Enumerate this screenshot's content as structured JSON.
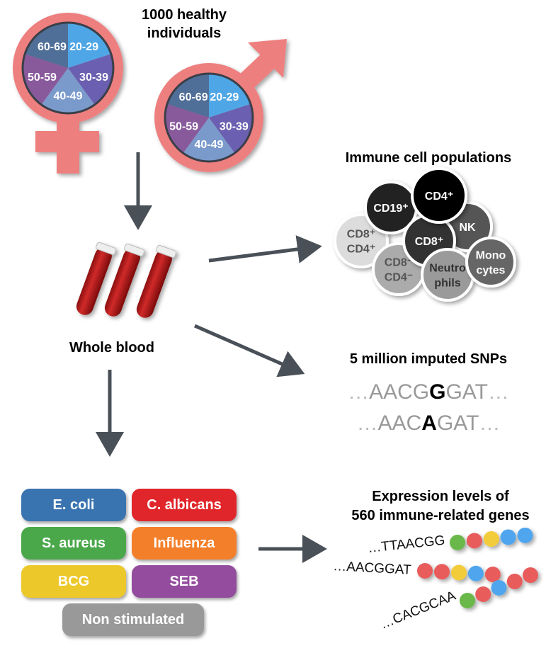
{
  "title": [
    "1000 healthy",
    "individuals"
  ],
  "age_groups": [
    "20-29",
    "30-39",
    "40-49",
    "50-59",
    "60-69"
  ],
  "age_colors": [
    "#4fa6e6",
    "#6a5fb0",
    "#7a9acc",
    "#885a9c",
    "#4f6f98"
  ],
  "symbol_color": "#ee7f7f",
  "whole_blood": "Whole blood",
  "immune": {
    "title": "Immune cell populations",
    "cells": [
      {
        "label": [
          "CD8⁺",
          "CD4⁺"
        ],
        "color": "#dcdcdc",
        "text": "#555"
      },
      {
        "label": [
          "CD8⁻",
          "CD4⁻"
        ],
        "color": "#ababab",
        "text": "#555"
      },
      {
        "label": [
          "CD19⁺"
        ],
        "color": "#222222",
        "text": "#fff"
      },
      {
        "label": [
          "NK"
        ],
        "color": "#555555",
        "text": "#fff"
      },
      {
        "label": [
          "CD8⁺"
        ],
        "color": "#333333",
        "text": "#fff"
      },
      {
        "label": [
          "CD4⁺"
        ],
        "color": "#000000",
        "text": "#fff"
      },
      {
        "label": [
          "Neutro",
          "phils"
        ],
        "color": "#9a9a9a",
        "text": "#333"
      },
      {
        "label": [
          "Mono",
          "cytes"
        ],
        "color": "#666666",
        "text": "#fff"
      }
    ]
  },
  "snps": {
    "title": "5 million imputed SNPs",
    "seq1": {
      "pre": "AACG",
      "var": "G",
      "post": "GAT"
    },
    "seq2": {
      "pre": "AAC",
      "var": "A",
      "post": "GAT"
    }
  },
  "stimuli": [
    {
      "label": "E. coli",
      "color": "#3a74b0"
    },
    {
      "label": "C. albicans",
      "color": "#e0262a"
    },
    {
      "label": "S. aureus",
      "color": "#4aa84a"
    },
    {
      "label": "Influenza",
      "color": "#f47f2a"
    },
    {
      "label": "BCG",
      "color": "#ecc82a"
    },
    {
      "label": "SEB",
      "color": "#944c9e"
    },
    {
      "label": "Non stimulated",
      "color": "#999999"
    }
  ],
  "expression": {
    "title": [
      "Expression levels of",
      "560 immune-related genes"
    ],
    "rows": [
      {
        "seq": "…TTAACGG",
        "beads": [
          "#6ab84a",
          "#e85c5c",
          "#f2cc3a",
          "#4fa6ee",
          "#4fa6ee"
        ]
      },
      {
        "seq": "…AACGGAT",
        "beads": [
          "#e85c5c",
          "#e85c5c",
          "#f2cc3a",
          "#4fa6ee",
          "#e85c5c"
        ]
      },
      {
        "seq": "…CACGCAA",
        "beads": [
          "#6ab84a",
          "#e85c5c",
          "#4fa6ee",
          "#e85c5c",
          "#e85c5c"
        ]
      }
    ]
  }
}
